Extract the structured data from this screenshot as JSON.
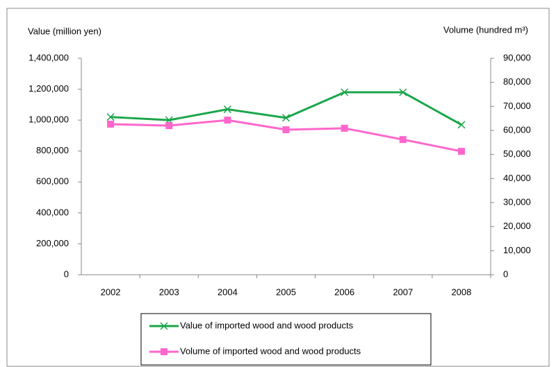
{
  "chart_data": {
    "type": "line",
    "y_label": "Value (million yen)",
    "y2_label": "Volume (hundred m³)",
    "categories": [
      "2002",
      "2003",
      "2004",
      "2005",
      "2006",
      "2007",
      "2008"
    ],
    "ylim": [
      0,
      1400000
    ],
    "yticks": [
      0,
      {
        "value": 200000,
        "label": "200,000"
      },
      {
        "value": 400000,
        "label": "400,000"
      },
      {
        "value": 600000,
        "label": "600,000"
      },
      {
        "value": 800000,
        "label": "800,000"
      },
      {
        "value": 1000000,
        "label": "1,000,000"
      },
      {
        "value": 1200000,
        "label": "1,200,000"
      },
      {
        "value": 1400000,
        "label": "1,400,000"
      }
    ],
    "y2lim": [
      0,
      90000
    ],
    "y2ticks": [
      0,
      {
        "value": 10000,
        "label": "10,000"
      },
      {
        "value": 20000,
        "label": "20,000"
      },
      {
        "value": 30000,
        "label": "30,000"
      },
      {
        "value": 40000,
        "label": "40,000"
      },
      {
        "value": 50000,
        "label": "50,000"
      },
      {
        "value": 60000,
        "label": "60,000"
      },
      {
        "value": 70000,
        "label": "70,000"
      },
      {
        "value": 80000,
        "label": "80,000"
      },
      {
        "value": 90000,
        "label": "90,000"
      }
    ],
    "series": [
      {
        "name": "Value of imported wood and wood products",
        "color": "#1aa64a",
        "marker": "x",
        "values": [
          1020000,
          1000000,
          1070000,
          1015000,
          1180000,
          1180000,
          970000
        ]
      },
      {
        "name": "Volume of imported wood and wood products",
        "color": "#ff66cc",
        "marker": "square",
        "axis": "y2",
        "values": [
          62600,
          62000,
          64300,
          60300,
          60900,
          56200,
          51300
        ]
      }
    ]
  }
}
